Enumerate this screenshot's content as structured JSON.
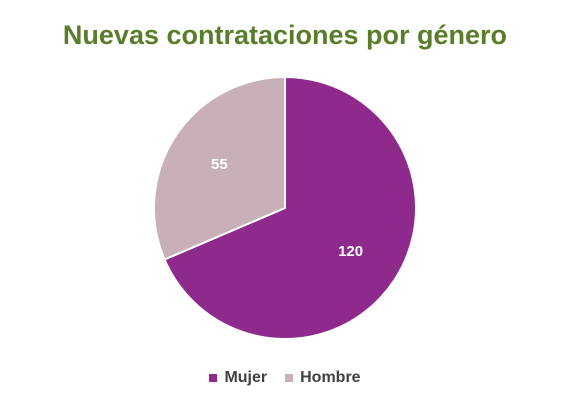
{
  "chart_data": {
    "type": "pie",
    "title": "Nuevas contrataciones por género",
    "title_color": "#5a7d2b",
    "categories": [
      "Mujer",
      "Hombre"
    ],
    "values": [
      120,
      55
    ],
    "colors": [
      "#8e2a8c",
      "#c8afb8"
    ],
    "data_labels": [
      "120",
      "55"
    ],
    "legend_position": "bottom",
    "start_angle_deg": 0,
    "direction": "clockwise"
  }
}
